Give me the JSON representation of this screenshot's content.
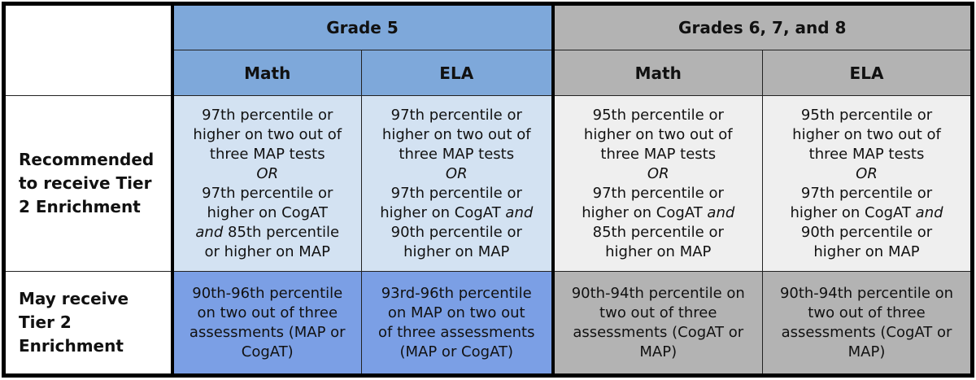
{
  "headers": {
    "grade5": "Grade 5",
    "grades678": "Grades 6, 7, and 8",
    "subjects": [
      "Math",
      "ELA",
      "Math",
      "ELA"
    ]
  },
  "rows": [
    {
      "label": [
        "Recommended",
        "to receive Tier",
        "2 Enrichment"
      ],
      "cells": [
        [
          [
            {
              "t": "97th percentile or"
            }
          ],
          [
            {
              "t": "higher on two out of"
            }
          ],
          [
            {
              "t": "three MAP tests"
            }
          ],
          [
            {
              "t": "OR",
              "i": true
            }
          ],
          [
            {
              "t": "97th percentile or"
            }
          ],
          [
            {
              "t": "higher on CogAT"
            }
          ],
          [
            {
              "t": "and",
              "i": true
            },
            {
              "t": " 85th percentile"
            }
          ],
          [
            {
              "t": "or higher on MAP"
            }
          ]
        ],
        [
          [
            {
              "t": "97th percentile or"
            }
          ],
          [
            {
              "t": "higher on two out of"
            }
          ],
          [
            {
              "t": "three MAP tests"
            }
          ],
          [
            {
              "t": "OR",
              "i": true
            }
          ],
          [
            {
              "t": "97th percentile or"
            }
          ],
          [
            {
              "t": "higher on CogAT "
            },
            {
              "t": "and",
              "i": true
            }
          ],
          [
            {
              "t": "90th percentile or"
            }
          ],
          [
            {
              "t": "higher on MAP"
            }
          ]
        ],
        [
          [
            {
              "t": "95th percentile or"
            }
          ],
          [
            {
              "t": "higher on two out of"
            }
          ],
          [
            {
              "t": "three MAP tests"
            }
          ],
          [
            {
              "t": "OR",
              "i": true
            }
          ],
          [
            {
              "t": "97th percentile or"
            }
          ],
          [
            {
              "t": "higher on CogAT "
            },
            {
              "t": "and",
              "i": true
            }
          ],
          [
            {
              "t": "85th percentile or"
            }
          ],
          [
            {
              "t": "higher on MAP"
            }
          ]
        ],
        [
          [
            {
              "t": "95th percentile or"
            }
          ],
          [
            {
              "t": "higher on two out of"
            }
          ],
          [
            {
              "t": "three MAP tests"
            }
          ],
          [
            {
              "t": "OR",
              "i": true
            }
          ],
          [
            {
              "t": "97th percentile or"
            }
          ],
          [
            {
              "t": "higher on CogAT "
            },
            {
              "t": "and",
              "i": true
            }
          ],
          [
            {
              "t": "90th percentile or"
            }
          ],
          [
            {
              "t": "higher on MAP"
            }
          ]
        ]
      ]
    },
    {
      "label": [
        "May receive",
        "Tier 2",
        "Enrichment"
      ],
      "cells": [
        [
          [
            {
              "t": "90th-96th percentile"
            }
          ],
          [
            {
              "t": "on two out of three"
            }
          ],
          [
            {
              "t": "assessments (MAP or"
            }
          ],
          [
            {
              "t": "CogAT)"
            }
          ]
        ],
        [
          [
            {
              "t": "93rd-96th percentile"
            }
          ],
          [
            {
              "t": "on MAP on two out"
            }
          ],
          [
            {
              "t": "of three assessments"
            }
          ],
          [
            {
              "t": "(MAP or CogAT)"
            }
          ]
        ],
        [
          [
            {
              "t": "90th-94th percentile on"
            }
          ],
          [
            {
              "t": "two out of three"
            }
          ],
          [
            {
              "t": "assessments (CogAT or"
            }
          ],
          [
            {
              "t": "MAP)"
            }
          ]
        ],
        [
          [
            {
              "t": "90th-94th percentile on"
            }
          ],
          [
            {
              "t": "two out of three"
            }
          ],
          [
            {
              "t": "assessments (CogAT or"
            }
          ],
          [
            {
              "t": "MAP)"
            }
          ]
        ]
      ]
    }
  ]
}
